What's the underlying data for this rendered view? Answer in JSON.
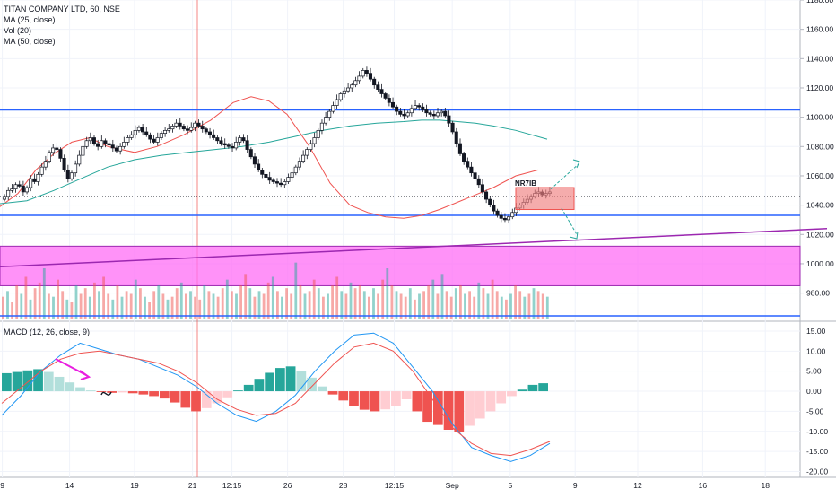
{
  "chart_data": [
    {
      "type": "candlestick",
      "title": "TITAN COMPANY LTD, 60, NSE",
      "indicators": [
        "MA (25, close)",
        "Vol (20)",
        "MA (50, close)"
      ],
      "ylim": [
        962,
        1180
      ],
      "ytick_labels": [
        "1180.00",
        "1160.00",
        "1140.00",
        "1120.00",
        "1100.00",
        "1080.00",
        "1060.00",
        "1040.00",
        "1020.00",
        "1000.00",
        "980.00"
      ],
      "ytick_values": [
        1180,
        1160,
        1140,
        1120,
        1100,
        1080,
        1060,
        1040,
        1020,
        1000,
        980
      ],
      "xtick_labels": [
        "9",
        "14",
        "19",
        "21",
        "12:15",
        "26",
        "28",
        "12:15",
        "Sep",
        "5",
        "9",
        "12",
        "16",
        "18"
      ],
      "xtick_index": [
        1,
        30,
        58,
        83,
        100,
        124,
        148,
        170,
        195,
        220,
        248,
        275,
        303,
        330
      ],
      "n_index": 345,
      "grid": true,
      "close_series": [
        1046,
        1050,
        1051,
        1054,
        1053,
        1049,
        1052,
        1058,
        1056,
        1061,
        1066,
        1070,
        1076,
        1079,
        1078,
        1072,
        1064,
        1058,
        1062,
        1068,
        1074,
        1080,
        1084,
        1086,
        1082,
        1080,
        1084,
        1082,
        1081,
        1079,
        1077,
        1080,
        1083,
        1086,
        1088,
        1091,
        1093,
        1090,
        1088,
        1085,
        1083,
        1086,
        1089,
        1091,
        1092,
        1094,
        1096,
        1094,
        1092,
        1091,
        1093,
        1096,
        1094,
        1092,
        1090,
        1088,
        1086,
        1084,
        1082,
        1081,
        1080,
        1079,
        1083,
        1086,
        1084,
        1078,
        1073,
        1068,
        1064,
        1061,
        1059,
        1057,
        1056,
        1055,
        1054,
        1056,
        1059,
        1062,
        1066,
        1070,
        1074,
        1078,
        1082,
        1086,
        1091,
        1096,
        1100,
        1104,
        1108,
        1112,
        1116,
        1118,
        1120,
        1122,
        1125,
        1128,
        1132,
        1130,
        1126,
        1122,
        1119,
        1116,
        1113,
        1110,
        1107,
        1104,
        1102,
        1101,
        1103,
        1106,
        1108,
        1107,
        1105,
        1103,
        1102,
        1101,
        1103,
        1104,
        1101,
        1096,
        1090,
        1082,
        1075,
        1070,
        1066,
        1062,
        1058,
        1054,
        1049,
        1044,
        1040,
        1036,
        1033,
        1031,
        1030,
        1032,
        1035,
        1038,
        1040,
        1042,
        1044,
        1046,
        1048,
        1049,
        1047,
        1048,
        1049
      ],
      "close_start_index": 195,
      "ma25": [
        [
          0,
          1039
        ],
        [
          20,
          1048
        ],
        [
          40,
          1064
        ],
        [
          60,
          1075
        ],
        [
          80,
          1083
        ],
        [
          100,
          1086
        ],
        [
          120,
          1080
        ],
        [
          150,
          1076
        ],
        [
          175,
          1080
        ],
        [
          205,
          1088
        ],
        [
          235,
          1098
        ],
        [
          260,
          1110
        ],
        [
          280,
          1114
        ],
        [
          300,
          1111
        ],
        [
          320,
          1102
        ],
        [
          345,
          1080
        ],
        [
          368,
          1055
        ],
        [
          390,
          1040
        ],
        [
          410,
          1035
        ],
        [
          430,
          1032
        ],
        [
          450,
          1031
        ],
        [
          470,
          1033
        ],
        [
          490,
          1037
        ],
        [
          510,
          1042
        ],
        [
          530,
          1047
        ],
        [
          550,
          1052
        ],
        [
          575,
          1060
        ],
        [
          600,
          1064
        ]
      ],
      "ma50": [
        [
          0,
          1041
        ],
        [
          30,
          1043
        ],
        [
          60,
          1050
        ],
        [
          90,
          1058
        ],
        [
          120,
          1066
        ],
        [
          150,
          1071
        ],
        [
          180,
          1074
        ],
        [
          210,
          1076
        ],
        [
          240,
          1078
        ],
        [
          270,
          1080
        ],
        [
          300,
          1083
        ],
        [
          330,
          1087
        ],
        [
          360,
          1091
        ],
        [
          390,
          1094
        ],
        [
          420,
          1096
        ],
        [
          450,
          1097
        ],
        [
          470,
          1098
        ],
        [
          490,
          1098
        ],
        [
          510,
          1097
        ],
        [
          530,
          1096
        ],
        [
          550,
          1094
        ],
        [
          575,
          1091
        ],
        [
          610,
          1085
        ]
      ],
      "horizontal_levels": [
        1105,
        1033
      ],
      "dotted_level": 1046,
      "zone": {
        "label": "NR7IB",
        "top": 1052,
        "bottom": 1037,
        "color": "#f08080"
      },
      "trendline": [
        [
          0,
          998
        ],
        [
          922,
          1024
        ]
      ],
      "magenta_band": [
        1012,
        985
      ]
    },
    {
      "type": "bar",
      "title": "Vol (20)",
      "values": [
        8,
        10,
        6,
        12,
        9,
        15,
        7,
        11,
        13,
        18,
        9,
        8,
        14,
        10,
        7,
        6,
        12,
        9,
        11,
        8,
        13,
        10,
        15,
        9,
        7,
        12,
        8,
        10,
        9,
        14,
        11,
        8,
        6,
        10,
        12,
        9,
        7,
        8,
        11,
        13,
        9,
        10,
        8,
        7,
        12,
        10,
        9,
        8,
        11,
        14,
        10,
        9,
        12,
        16,
        11,
        8,
        10,
        9,
        13,
        15,
        10,
        8,
        11,
        9,
        20,
        12,
        9,
        10,
        14,
        11,
        8,
        9,
        12,
        15,
        10,
        9,
        13,
        11,
        12,
        10,
        8,
        11,
        9,
        14,
        18,
        12,
        10,
        9,
        8,
        11,
        7,
        9,
        10,
        12,
        14,
        9,
        16,
        10,
        8,
        11,
        12,
        9,
        10,
        8,
        13,
        11,
        9,
        14,
        10,
        8,
        7,
        9,
        12,
        10,
        8,
        9,
        11,
        10,
        9,
        8
      ],
      "colors_up": "#26a69a",
      "colors_down": "#ef5350"
    },
    {
      "type": "bar",
      "title": "MACD (12, 26, close, 9)",
      "ylim": [
        -21,
        17
      ],
      "ytick_labels": [
        "15.00",
        "10.00",
        "5.00",
        "0.00",
        "-5.00",
        "-10.00",
        "-15.00",
        "-20.00"
      ],
      "ytick_values": [
        15,
        10,
        5,
        0,
        -5,
        -10,
        -15,
        -20
      ],
      "histogram": [
        4.5,
        4.8,
        5.2,
        5.5,
        4.8,
        3.6,
        2.2,
        1.0,
        0.2,
        -0.2,
        -0.4,
        -0.3,
        -0.5,
        -0.8,
        -1.2,
        -1.8,
        -2.8,
        -4.1,
        -5.0,
        -4.2,
        -3.0,
        -1.5,
        0.2,
        1.6,
        3.1,
        4.6,
        5.8,
        6.2,
        5.0,
        3.4,
        1.2,
        -0.8,
        -2.3,
        -3.6,
        -4.6,
        -5.0,
        -4.5,
        -3.6,
        -2.0,
        -5.0,
        -7.6,
        -8.4,
        -9.6,
        -10.2,
        -8.6,
        -6.8,
        -5.0,
        -3.0,
        -1.2,
        0.4,
        1.6,
        2.0
      ],
      "macd": [
        -6,
        -1,
        5,
        9,
        12,
        10.5,
        9,
        8,
        6,
        4,
        1,
        -3,
        -6,
        -7.5,
        -5,
        -1,
        5,
        10,
        14,
        14.5,
        12,
        6,
        0,
        -8,
        -14,
        -16,
        -17.5,
        -16,
        -13
      ],
      "signal": [
        -3,
        1,
        5,
        8,
        9.5,
        10,
        9,
        8,
        7,
        5,
        2,
        -2,
        -4.5,
        -6,
        -5.5,
        -3,
        2,
        7,
        11,
        12,
        10,
        5,
        -2,
        -9,
        -13,
        -15.5,
        -16,
        -14.5,
        -12.5
      ]
    }
  ]
}
